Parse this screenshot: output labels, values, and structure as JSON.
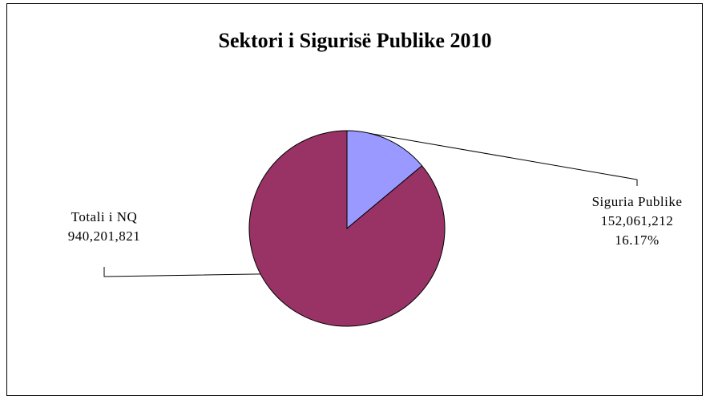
{
  "chart_data": {
    "type": "pie",
    "title": "Sektori i Sigurisë Publike 2010",
    "slices": [
      {
        "label_lines": [
          "Siguria Publike",
          "152,061,212",
          "16.17%"
        ],
        "value": 152061212,
        "percent": 16.17,
        "color": "#9999ff"
      },
      {
        "label_lines": [
          "Totali i  NQ",
          "940,201,821"
        ],
        "value": 940201821,
        "color": "#993366"
      }
    ],
    "legend": "none"
  }
}
